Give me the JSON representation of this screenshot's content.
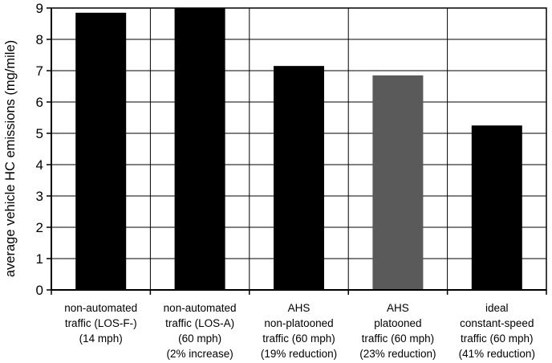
{
  "chart_data": {
    "type": "bar",
    "title": "",
    "xlabel": "",
    "ylabel": "average vehicle HC emissions (mg/mile)",
    "ylim": [
      0,
      9
    ],
    "yticks": [
      0,
      1,
      2,
      3,
      4,
      5,
      6,
      7,
      8,
      9
    ],
    "grid": "horizontal",
    "categories": [
      [
        "non-automated",
        "traffic (LOS-F-)",
        "(14 mph)"
      ],
      [
        "non-automated",
        "traffic (LOS-A)",
        "(60 mph)",
        "(2% increase)"
      ],
      [
        "AHS",
        "non-platooned",
        "traffic (60 mph)",
        "(19% reduction)"
      ],
      [
        "AHS",
        "platooned",
        "traffic (60 mph)",
        "(23% reduction)"
      ],
      [
        "ideal",
        "constant-speed",
        "traffic (60 mph)",
        "(41% reduction)"
      ]
    ],
    "values": [
      8.85,
      9.05,
      7.15,
      6.85,
      5.25
    ],
    "bar_colors": [
      "#000000",
      "#000000",
      "#000000",
      "#5a5a5a",
      "#000000"
    ]
  }
}
